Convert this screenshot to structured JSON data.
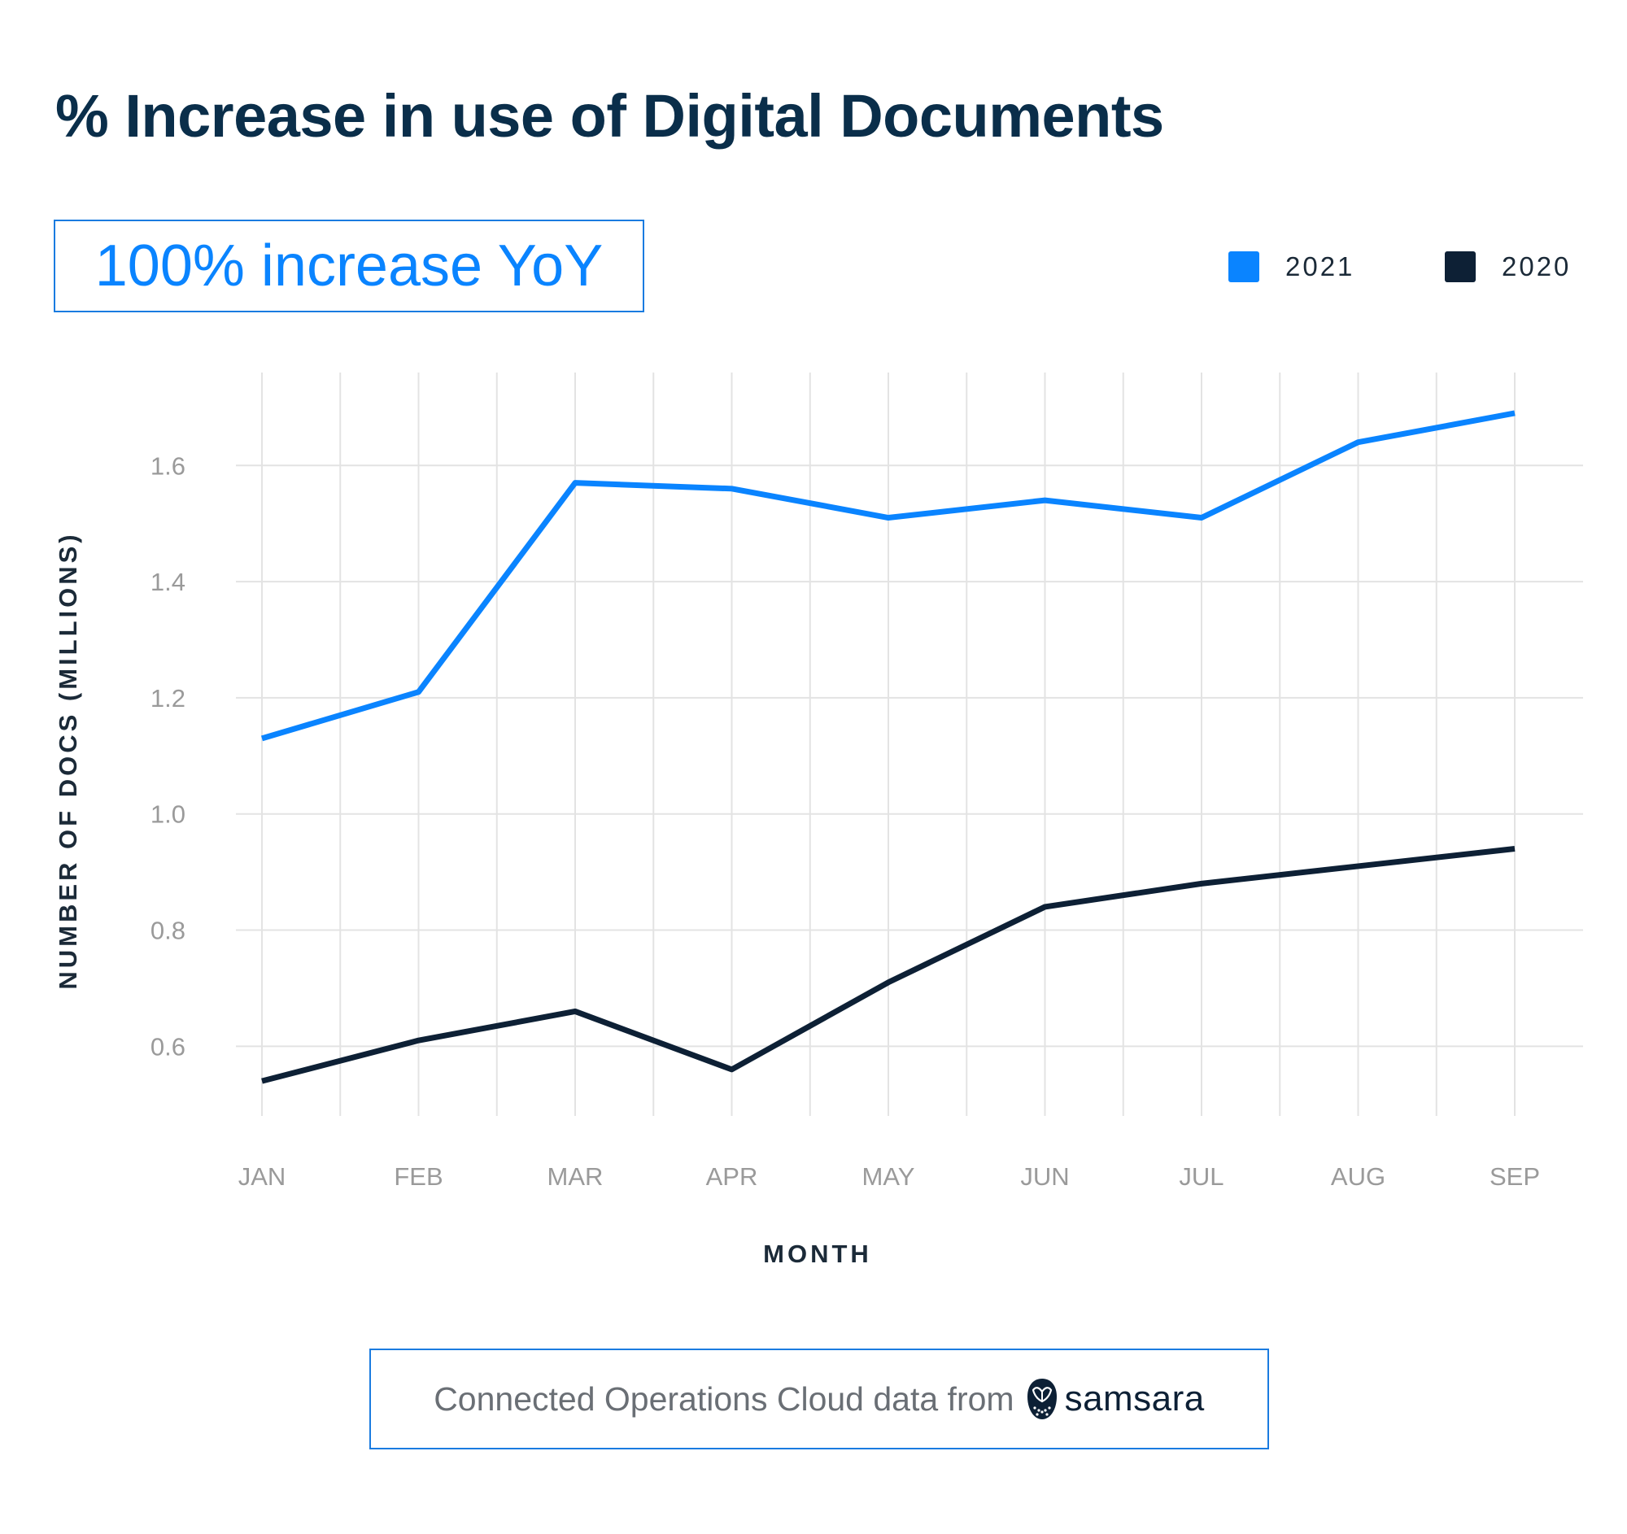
{
  "title": "% Increase in use of Digital Documents",
  "callout": "100% increase YoY",
  "legend": [
    {
      "label": "2021",
      "color": "#0a84ff"
    },
    {
      "label": "2020",
      "color": "#0d2035"
    }
  ],
  "footer": {
    "text": "Connected Operations Cloud data from",
    "brand": "samsara",
    "logo_icon": "owl-icon"
  },
  "colors": {
    "series_2021": "#0a84ff",
    "series_2020": "#0d2035",
    "grid": "#e3e3e3",
    "border": "#1a7be0"
  },
  "chart_data": {
    "type": "line",
    "categories": [
      "JAN",
      "FEB",
      "MAR",
      "APR",
      "MAY",
      "JUN",
      "JUL",
      "AUG",
      "SEP"
    ],
    "series": [
      {
        "name": "2021",
        "color": "#0a84ff",
        "values": [
          1.13,
          1.21,
          1.57,
          1.56,
          1.51,
          1.54,
          1.51,
          1.64,
          1.69
        ]
      },
      {
        "name": "2020",
        "color": "#0d2035",
        "values": [
          0.54,
          0.61,
          0.66,
          0.56,
          0.71,
          0.84,
          0.88,
          0.91,
          0.94
        ]
      }
    ],
    "xlabel": "MONTH",
    "ylabel": "NUMBER OF DOCS (MILLIONS)",
    "yticks": [
      0.6,
      0.8,
      1.0,
      1.2,
      1.4,
      1.6
    ],
    "ylim": [
      0.48,
      1.76
    ],
    "grid": true,
    "legend_position": "top-right"
  }
}
